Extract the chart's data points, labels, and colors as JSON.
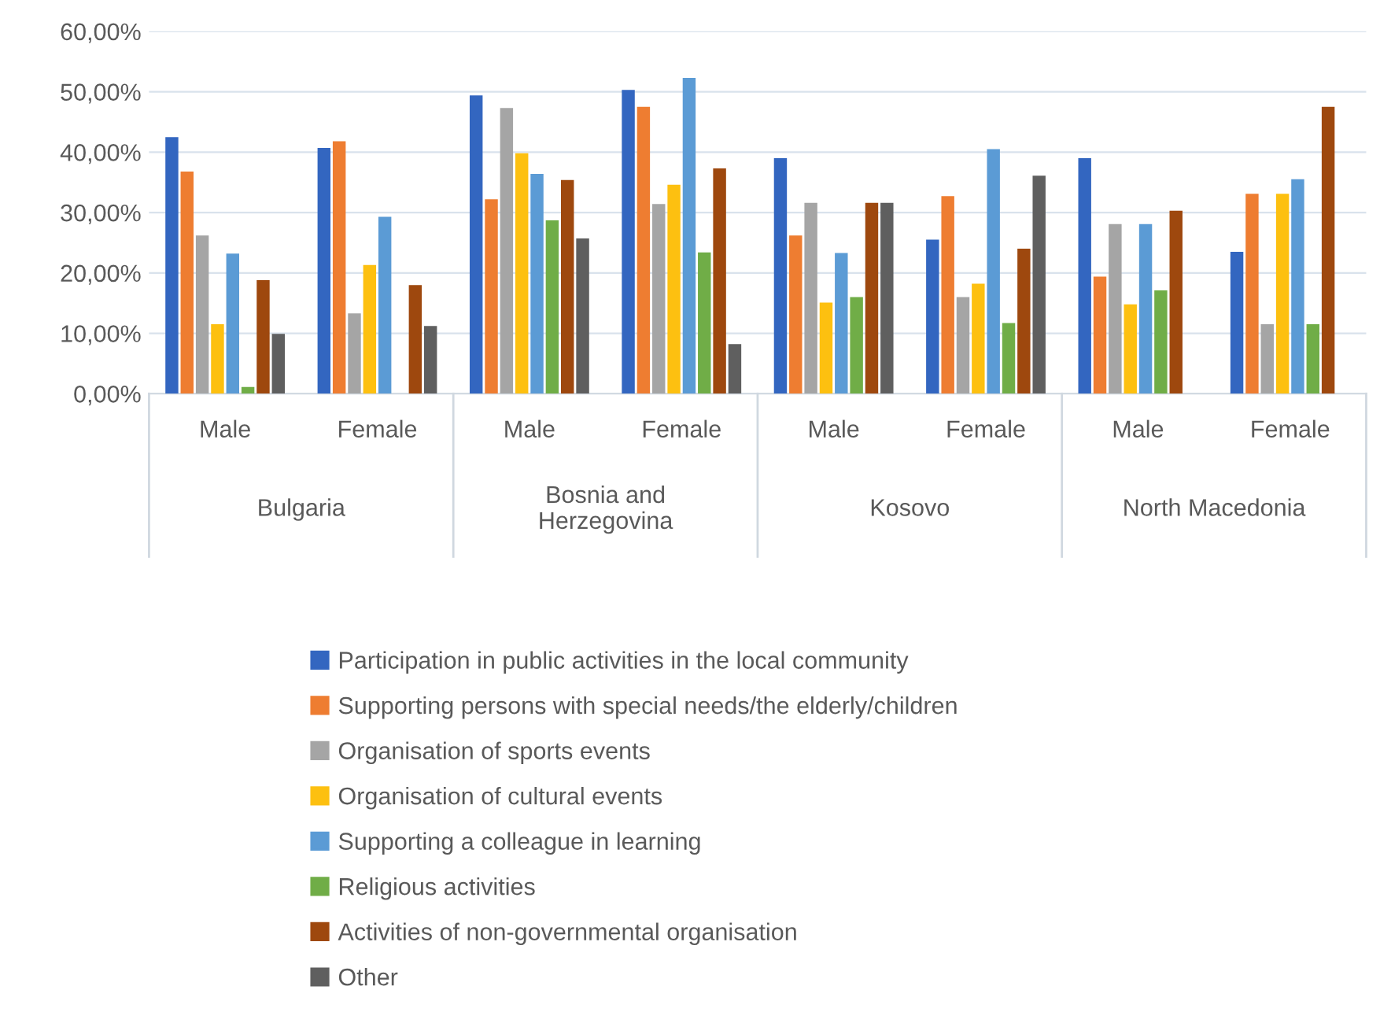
{
  "chart_data": {
    "type": "bar",
    "categories": [
      "Male",
      "Female",
      "Male",
      "Female",
      "Male",
      "Female",
      "Male",
      "Female"
    ],
    "series": [
      {
        "name": "Participation in public activities in the local community",
        "color": "#3366c0",
        "values": [
          42.5,
          40.7,
          49.4,
          50.3,
          39.0,
          25.5,
          39.0,
          23.5
        ]
      },
      {
        "name": "Supporting persons with special needs/the elderly/children",
        "color": "#ee7d31",
        "values": [
          36.8,
          41.8,
          32.2,
          47.5,
          26.2,
          32.7,
          19.4,
          33.1
        ]
      },
      {
        "name": "Organisation of sports events",
        "color": "#a5a5a5",
        "values": [
          26.2,
          13.3,
          47.3,
          31.4,
          31.6,
          16.0,
          28.1,
          11.5
        ]
      },
      {
        "name": "Organisation of cultural events",
        "color": "#fdc010",
        "values": [
          11.5,
          21.3,
          39.8,
          34.6,
          15.1,
          18.2,
          14.8,
          33.1
        ]
      },
      {
        "name": "Supporting a colleague in learning",
        "color": "#5b9bd5",
        "values": [
          23.2,
          29.3,
          36.4,
          52.3,
          23.3,
          40.5,
          28.1,
          35.5
        ]
      },
      {
        "name": "Religious activities",
        "color": "#70ad47",
        "values": [
          1.1,
          null,
          28.7,
          23.4,
          16.0,
          11.7,
          17.1,
          11.5
        ]
      },
      {
        "name": "Activities of non-governmental organisation",
        "color": "#9e480e",
        "values": [
          18.8,
          18.0,
          35.4,
          37.3,
          31.6,
          24.0,
          30.3,
          47.5
        ]
      },
      {
        "name": "Other",
        "color": "#5f5f5f",
        "values": [
          9.9,
          11.2,
          25.7,
          8.2,
          31.6,
          36.1,
          null,
          null
        ]
      }
    ],
    "annotations": [
      "Bulgaria",
      "Bosnia and\nHerzegovina",
      "Kosovo",
      "North Macedonia"
    ],
    "ylim": [
      0,
      60
    ],
    "yticks": [
      {
        "value": 0,
        "label": "0,00%"
      },
      {
        "value": 10,
        "label": "10,00%"
      },
      {
        "value": 20,
        "label": "20,00%"
      },
      {
        "value": 30,
        "label": "30,00%"
      },
      {
        "value": 40,
        "label": "40,00%"
      },
      {
        "value": 50,
        "label": "50,00%"
      },
      {
        "value": 60,
        "label": "60,00%"
      }
    ],
    "grid": "y",
    "legend": "bottom"
  }
}
